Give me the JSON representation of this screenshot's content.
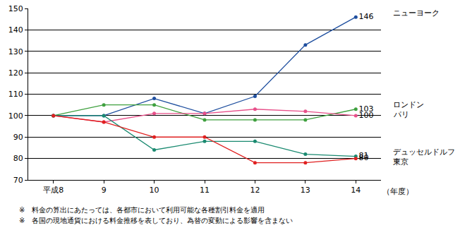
{
  "chart_data": {
    "type": "line",
    "categories": [
      "平成8",
      "9",
      "10",
      "11",
      "12",
      "13",
      "14"
    ],
    "x_label": "（年度）",
    "series": [
      {
        "name": "ニューヨーク",
        "color": "#1f4f9f",
        "values": [
          100,
          100,
          108,
          101,
          109,
          133,
          146
        ],
        "value_labels": [
          null,
          null,
          null,
          null,
          null,
          null,
          "146"
        ]
      },
      {
        "name": "ロンドン",
        "color": "#3fa03f",
        "values": [
          100,
          105,
          105,
          98,
          98,
          98,
          103
        ],
        "value_labels": [
          null,
          null,
          null,
          null,
          null,
          null,
          "103"
        ]
      },
      {
        "name": "パリ",
        "color": "#e8508a",
        "values": [
          100,
          97,
          101,
          101,
          103,
          102,
          100
        ],
        "value_labels": [
          null,
          null,
          null,
          null,
          null,
          null,
          "100"
        ]
      },
      {
        "name": "デュッセルドルフ",
        "color": "#1a8a70",
        "values": [
          100,
          100,
          84,
          88,
          88,
          82,
          81
        ],
        "value_labels": [
          null,
          null,
          null,
          null,
          null,
          null,
          "81"
        ]
      },
      {
        "name": "東京",
        "color": "#e02020",
        "values": [
          100,
          97,
          90,
          90,
          78,
          78,
          80
        ],
        "value_labels": [
          null,
          null,
          null,
          null,
          null,
          null,
          "80"
        ]
      }
    ],
    "ylim": [
      70,
      150
    ],
    "yticks": [
      70,
      80,
      90,
      100,
      110,
      120,
      130,
      140,
      150
    ],
    "grid": true,
    "marker": "circle",
    "notes": [
      "※　料金の算出にあたっては、各都市において利用可能な各種割引料金を適用",
      "※　各国の現地通貨における料金推移を表しており、為替の変動による影響を含まない"
    ]
  }
}
